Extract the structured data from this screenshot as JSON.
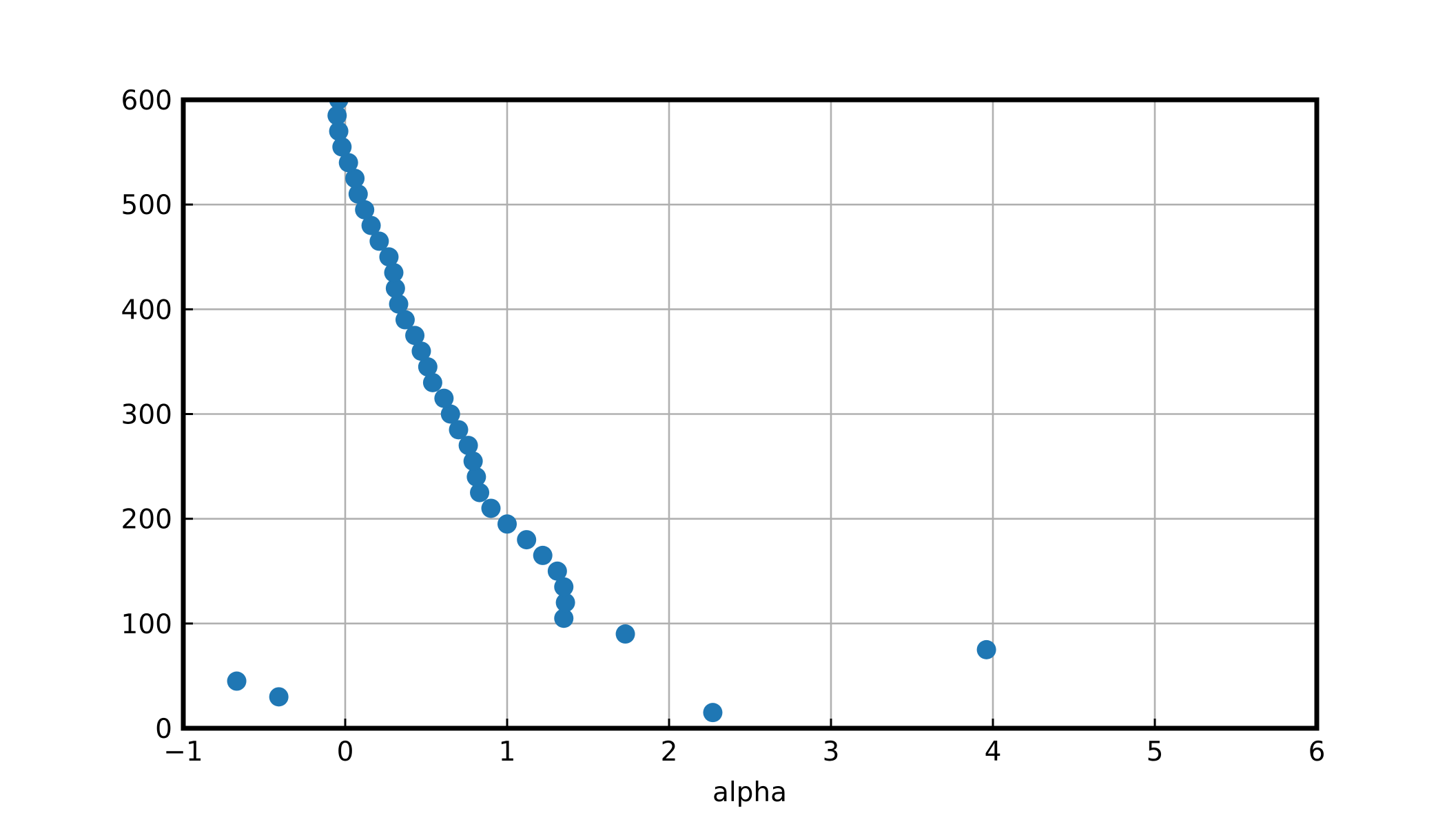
{
  "chart_data": {
    "type": "scatter",
    "xlabel": "alpha",
    "ylabel": "",
    "xlim": [
      -1,
      6
    ],
    "ylim": [
      0,
      600
    ],
    "x_ticks": [
      -1,
      0,
      1,
      2,
      3,
      4,
      5,
      6
    ],
    "x_tick_labels": [
      "−1",
      "0",
      "1",
      "2",
      "3",
      "4",
      "5",
      "6"
    ],
    "y_ticks": [
      0,
      100,
      200,
      300,
      400,
      500,
      600
    ],
    "y_tick_labels": [
      "0",
      "100",
      "200",
      "300",
      "400",
      "500",
      "600"
    ],
    "grid": true,
    "marker_color": "#1f77b4",
    "series": [
      {
        "points": [
          {
            "x": 2.27,
            "y": 15
          },
          {
            "x": -0.41,
            "y": 30
          },
          {
            "x": -0.67,
            "y": 45
          },
          {
            "x": 3.96,
            "y": 75
          },
          {
            "x": 1.73,
            "y": 90
          },
          {
            "x": 1.35,
            "y": 105
          },
          {
            "x": 1.36,
            "y": 120
          },
          {
            "x": 1.35,
            "y": 135
          },
          {
            "x": 1.31,
            "y": 150
          },
          {
            "x": 1.22,
            "y": 165
          },
          {
            "x": 1.12,
            "y": 180
          },
          {
            "x": 1.0,
            "y": 195
          },
          {
            "x": 0.9,
            "y": 210
          },
          {
            "x": 0.83,
            "y": 225
          },
          {
            "x": 0.81,
            "y": 240
          },
          {
            "x": 0.79,
            "y": 255
          },
          {
            "x": 0.76,
            "y": 270
          },
          {
            "x": 0.7,
            "y": 285
          },
          {
            "x": 0.65,
            "y": 300
          },
          {
            "x": 0.61,
            "y": 315
          },
          {
            "x": 0.54,
            "y": 330
          },
          {
            "x": 0.51,
            "y": 345
          },
          {
            "x": 0.47,
            "y": 360
          },
          {
            "x": 0.43,
            "y": 375
          },
          {
            "x": 0.37,
            "y": 390
          },
          {
            "x": 0.33,
            "y": 405
          },
          {
            "x": 0.31,
            "y": 420
          },
          {
            "x": 0.3,
            "y": 435
          },
          {
            "x": 0.27,
            "y": 450
          },
          {
            "x": 0.21,
            "y": 465
          },
          {
            "x": 0.16,
            "y": 480
          },
          {
            "x": 0.12,
            "y": 495
          },
          {
            "x": 0.08,
            "y": 510
          },
          {
            "x": 0.06,
            "y": 525
          },
          {
            "x": 0.02,
            "y": 540
          },
          {
            "x": -0.02,
            "y": 555
          },
          {
            "x": -0.04,
            "y": 570
          },
          {
            "x": -0.05,
            "y": 585
          },
          {
            "x": -0.04,
            "y": 600
          }
        ]
      }
    ]
  }
}
